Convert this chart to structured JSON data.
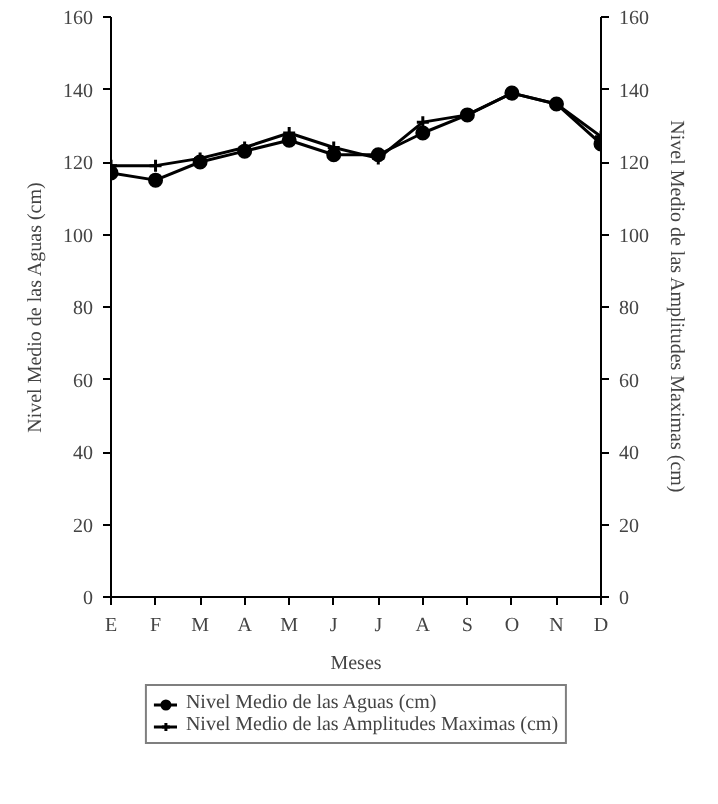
{
  "chart_data": {
    "type": "line",
    "xlabel": "Meses",
    "ylabel": "Nivel Medio de las Aguas (cm)",
    "y2label": "Nivel Medio de las Amplitudes Maximas (cm)",
    "categories": [
      "E",
      "F",
      "M",
      "A",
      "M",
      "J",
      "J",
      "A",
      "S",
      "O",
      "N",
      "D"
    ],
    "ylim": [
      0,
      160
    ],
    "yticks": [
      0,
      20,
      40,
      60,
      80,
      100,
      120,
      140,
      160
    ],
    "y2lim": [
      0,
      160
    ],
    "y2ticks": [
      0,
      20,
      40,
      60,
      80,
      100,
      120,
      140,
      160
    ],
    "grid": false,
    "legend": "bottom",
    "series": [
      {
        "name": "Nivel Medio de las Aguas (cm)",
        "color": "#000000",
        "marker": "circle",
        "values": [
          117,
          115,
          120,
          123,
          126,
          122,
          122,
          128,
          133,
          139,
          136,
          125
        ]
      },
      {
        "name": "Nivel Medio de las Amplitudes Maximas (cm)",
        "color": "#000000",
        "marker": "cross",
        "values": [
          119,
          119,
          121,
          124,
          128,
          124,
          121,
          131,
          133,
          139,
          136,
          127
        ]
      }
    ]
  }
}
